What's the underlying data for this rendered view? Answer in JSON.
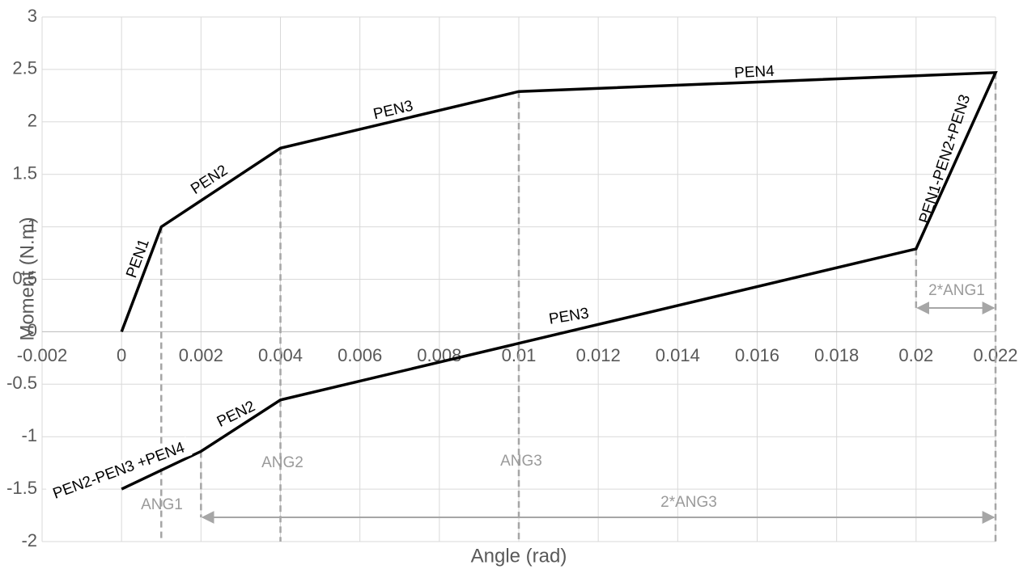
{
  "chart_data": {
    "type": "line",
    "x_label": "Angle (rad)",
    "y_label": "Moment (N.m)",
    "x": [
      0,
      0.001,
      0.004,
      0.01,
      0.022,
      0.02,
      0.01,
      0.004,
      0.002,
      0
    ],
    "values": [
      0,
      1,
      1.75,
      2.29,
      2.47,
      0.79,
      -0.11,
      -0.65,
      -1.14,
      -1.5
    ],
    "color": "#000000",
    "xlim": [
      -0.002,
      0.022
    ],
    "xticks": [
      -0.002,
      0,
      0.002,
      0.004,
      0.006,
      0.008,
      0.01,
      0.012,
      0.014,
      0.016,
      0.018,
      0.02,
      0.022
    ],
    "ylim": [
      -2,
      3
    ],
    "yticks": [
      -2,
      -1.5,
      -1,
      -0.5,
      0,
      0.5,
      1,
      1.5,
      2,
      2.5,
      3
    ],
    "grid": true,
    "annotations": [
      "PEN1",
      "PEN2",
      "PEN3",
      "PEN4",
      "PEN1-PEN2+PEN3",
      "PEN3",
      "PEN2",
      "PEN2-PEN3 +PEN4",
      "ANG1",
      "ANG2",
      "ANG3",
      "2*ANG1",
      "2*ANG3"
    ]
  }
}
